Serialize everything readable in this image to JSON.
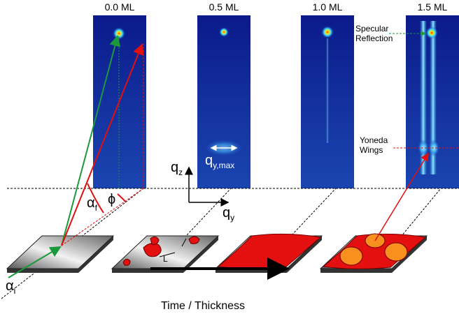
{
  "panels": [
    {
      "label": "0.0 ML"
    },
    {
      "label": "0.5 ML"
    },
    {
      "label": "1.0 ML"
    },
    {
      "label": "1.5 ML"
    }
  ],
  "annotations": {
    "specular": [
      "Specular",
      "Reflection"
    ],
    "yoneda": [
      "Yoneda",
      "Wings"
    ]
  },
  "axes": {
    "qz": {
      "base": "q",
      "sub": "z"
    },
    "qy": {
      "base": "q",
      "sub": "y"
    },
    "qymax": {
      "base": "q",
      "sub": "y,max"
    }
  },
  "angles": {
    "alpha_f": {
      "base": "α",
      "sub": "f"
    },
    "phi": "ϕ",
    "alpha_i": {
      "base": "α",
      "sub": "i"
    }
  },
  "island_size": "L",
  "arrow_label": "Time / Thickness"
}
